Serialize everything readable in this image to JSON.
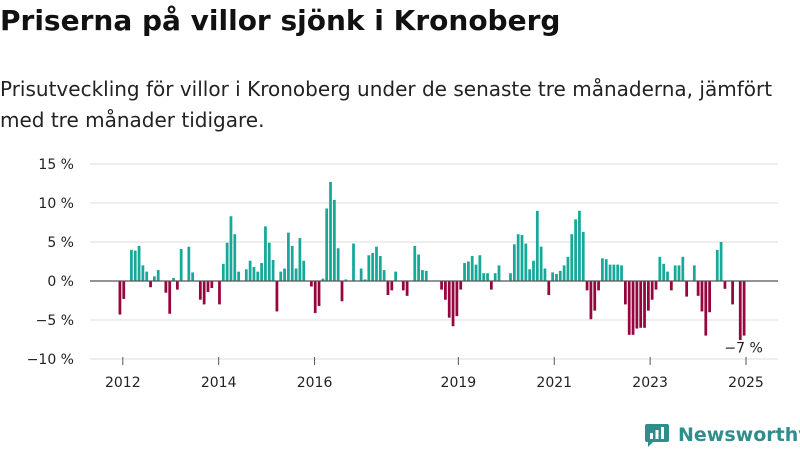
{
  "title": "Priserna på villor sjönk i Kronoberg",
  "subtitle": "Prisutveckling för villor i Kronoberg under de senaste tre månaderna, jämfört med tre månader tidigare.",
  "brand": {
    "name": "Newsworthy",
    "icon": "newsworthy-logo-icon"
  },
  "colors": {
    "positive": "#17a89a",
    "negative": "#96063e",
    "grid": "#dddddd",
    "brand": "#2f8e8c"
  },
  "chart_data": {
    "type": "bar",
    "title": "",
    "xlabel": "",
    "ylabel": "",
    "ylim": [
      -10,
      15
    ],
    "y_ticks": [
      15,
      10,
      5,
      0,
      -5,
      -10
    ],
    "y_tick_labels": [
      "15 %",
      "10 %",
      "5 %",
      "0 %",
      "−5 %",
      "−10 %"
    ],
    "x_ticks": [
      2012,
      2014,
      2016,
      2019,
      2021,
      2023,
      2025
    ],
    "x_tick_labels": [
      "2012",
      "2014",
      "2016",
      "2019",
      "2021",
      "2023",
      "2025"
    ],
    "grid": true,
    "legend": "none",
    "series": [
      {
        "frequency": "monthly",
        "start_year": 2012,
        "x_range": [
          2011.9,
          2025.0
        ],
        "values": [
          -4.3,
          -2.3,
          0,
          4,
          3.9,
          4.5,
          2,
          1.2,
          -0.8,
          0.6,
          1.4,
          0,
          -1.5,
          -4.2,
          0.4,
          -1.1,
          4.1,
          0,
          4.4,
          1.1,
          0,
          -2.4,
          -3,
          -1.4,
          -0.9,
          0,
          -3,
          2.2,
          4.9,
          8.3,
          6,
          1.2,
          0,
          1.5,
          2.6,
          1.8,
          1.2,
          2.3,
          7,
          4.9,
          2.7,
          -3.9,
          1.2,
          1.6,
          6.2,
          4.5,
          1.6,
          5.5,
          2.6,
          0,
          -0.7,
          -4.1,
          -3.2,
          0.3,
          9.3,
          12.7,
          10.4,
          4.2,
          -2.6,
          0.2,
          0,
          4.8,
          0,
          1.6,
          0.2,
          3.3,
          3.6,
          4.4,
          3.2,
          1.4,
          -1.8,
          -1.2,
          1.2,
          0,
          -1.2,
          -1.9,
          0,
          4.5,
          3.4,
          1.4,
          1.3,
          0,
          0,
          0,
          -1.1,
          -2.4,
          -4.7,
          -5.8,
          -4.5,
          -1.1,
          2.3,
          2.5,
          3.2,
          2.1,
          3.3,
          1,
          1,
          -1.1,
          1,
          2,
          0,
          0,
          1,
          4.7,
          6,
          5.9,
          4.8,
          1.5,
          2.6,
          9,
          4.4,
          1.6,
          -1.8,
          1.1,
          0.9,
          1.3,
          2,
          3.1,
          6,
          7.9,
          9,
          6.3,
          -1.2,
          -4.9,
          -3.8,
          -1.2,
          2.9,
          2.8,
          2.1,
          2.1,
          2.1,
          2,
          -3,
          -6.9,
          -6.9,
          -6.1,
          -6,
          -6,
          -3.8,
          -2.4,
          -1.1,
          3.1,
          2.2,
          1.2,
          -1.2,
          2,
          2,
          3.1,
          -2,
          0,
          2,
          -1.9,
          -3.9,
          -7,
          -4,
          0,
          4,
          5,
          -1,
          0,
          -3,
          0,
          -7.9,
          -7
        ]
      }
    ],
    "annotations": [
      {
        "text": "−7 %",
        "x": 2024.95,
        "y": -7
      }
    ]
  }
}
